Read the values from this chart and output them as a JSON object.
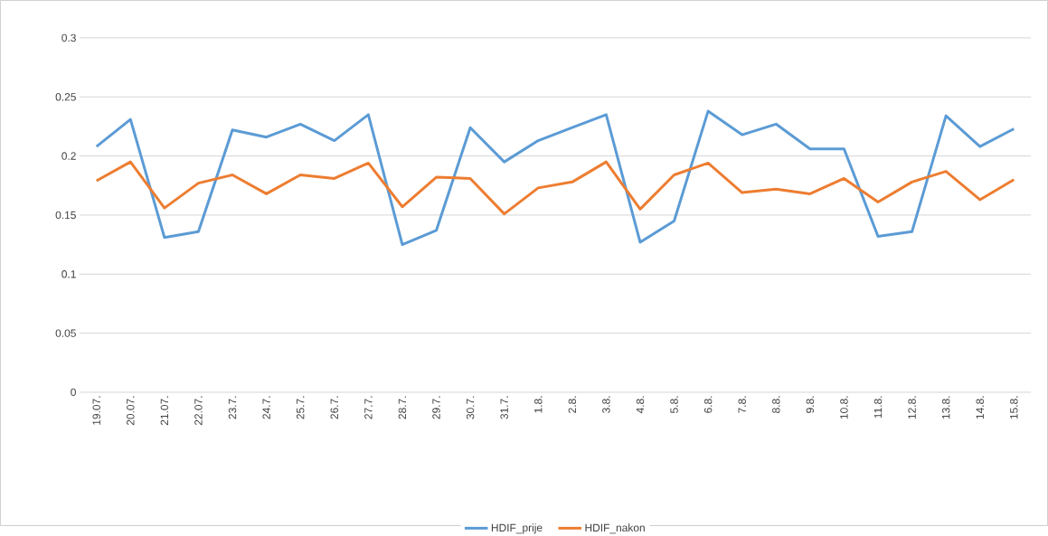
{
  "chart_data": {
    "type": "line",
    "categories": [
      "19.07.",
      "20.07.",
      "21.07.",
      "22.07.",
      "23.7.",
      "24.7.",
      "25.7.",
      "26.7.",
      "27.7.",
      "28.7.",
      "29.7.",
      "30.7.",
      "31.7.",
      "1.8.",
      "2.8.",
      "3.8.",
      "4.8.",
      "5.8.",
      "6.8.",
      "7.8.",
      "8.8.",
      "9.8.",
      "10.8.",
      "11.8.",
      "12.8.",
      "13.8.",
      "14.8.",
      "15.8."
    ],
    "series": [
      {
        "name": "HDIF_prije",
        "color": "#5b9bd5",
        "values": [
          0.208,
          0.231,
          0.131,
          0.136,
          0.222,
          0.216,
          0.227,
          0.213,
          0.235,
          0.125,
          0.137,
          0.224,
          0.195,
          0.213,
          0.224,
          0.235,
          0.127,
          0.145,
          0.238,
          0.218,
          0.227,
          0.206,
          0.206,
          0.132,
          0.136,
          0.234,
          0.208,
          0.223
        ]
      },
      {
        "name": "HDIF_nakon",
        "color": "#ed7d31",
        "values": [
          0.179,
          0.195,
          0.156,
          0.177,
          0.184,
          0.168,
          0.184,
          0.181,
          0.194,
          0.157,
          0.182,
          0.181,
          0.151,
          0.173,
          0.178,
          0.195,
          0.155,
          0.184,
          0.194,
          0.169,
          0.172,
          0.168,
          0.181,
          0.161,
          0.178,
          0.187,
          0.163,
          0.18
        ]
      }
    ],
    "ylim": [
      0,
      0.3
    ],
    "yticks": [
      0,
      0.05,
      0.1,
      0.15,
      0.2,
      0.25,
      0.3
    ],
    "grid": "y",
    "legend": "bottom",
    "marker": "none",
    "line_style": "solid"
  }
}
